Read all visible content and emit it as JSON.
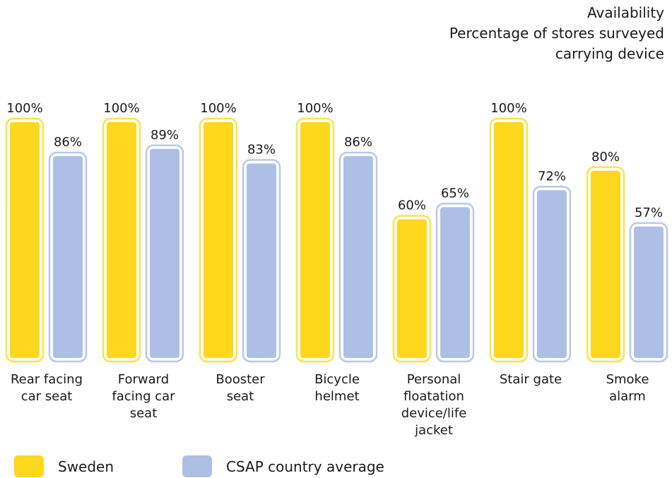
{
  "chart_data": {
    "type": "bar",
    "title": "Availability",
    "subtitle": "Percentage of stores surveyed carrying device",
    "categories": [
      "Rear facing car seat",
      "Forward facing car seat",
      "Booster seat",
      "Bicycle helmet",
      "Personal floatation device/life jacket",
      "Stair gate",
      "Smoke alarm"
    ],
    "series": [
      {
        "name": "Sweden",
        "color": "#fdd81c",
        "outline": "#fde24a",
        "values": [
          100,
          100,
          100,
          100,
          60,
          100,
          80
        ],
        "value_labels": [
          "100%",
          "100%",
          "100%",
          "100%",
          "60%",
          "100%",
          "80%"
        ]
      },
      {
        "name": "CSAP country average",
        "color": "#aebfe6",
        "outline": "#b9c7ea",
        "values": [
          86,
          89,
          83,
          86,
          65,
          72,
          57
        ],
        "value_labels": [
          "86%",
          "89%",
          "83%",
          "86%",
          "65%",
          "72%",
          "57%"
        ]
      }
    ]
  }
}
